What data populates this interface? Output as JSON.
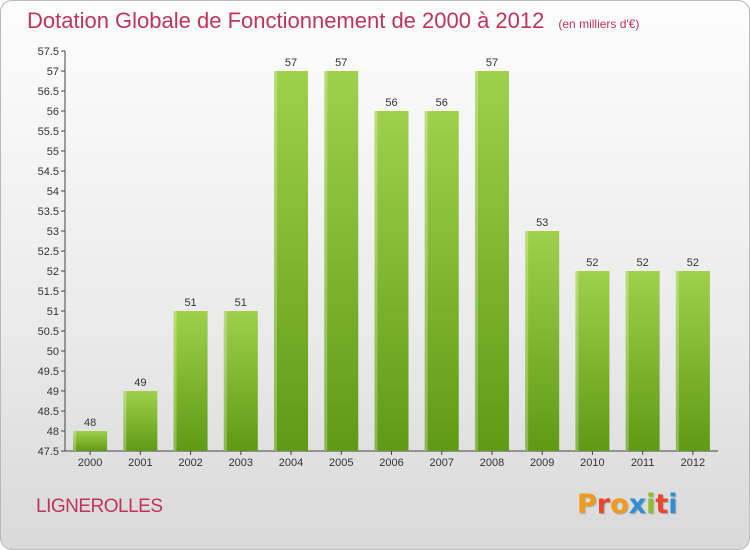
{
  "header": {
    "title": "Dotation Globale de Fonctionnement de 2000 à 2012",
    "subtitle": "(en milliers d'€)"
  },
  "footer": {
    "commune": "LIGNEROLLES",
    "logo_letters": [
      "P",
      "r",
      "o",
      "x",
      "i",
      "t",
      "i"
    ],
    "logo_colors": [
      "#f39a1b",
      "#e8452c",
      "#f39a1b",
      "#2f8fd6",
      "#8bbf2a",
      "#e8452c",
      "#2f8fd6"
    ]
  },
  "colors": {
    "bar_top": "#9fd14b",
    "bar_bottom": "#5f9a14",
    "title": "#c0345a"
  },
  "chart_data": {
    "type": "bar",
    "categories": [
      "2000",
      "2001",
      "2002",
      "2003",
      "2004",
      "2005",
      "2006",
      "2007",
      "2008",
      "2009",
      "2010",
      "2011",
      "2012"
    ],
    "values": [
      48,
      49,
      51,
      51,
      57,
      57,
      56,
      56,
      57,
      53,
      52,
      52,
      52
    ],
    "data_labels": [
      "48",
      "49",
      "51",
      "51",
      "57",
      "57",
      "56",
      "56",
      "57",
      "53",
      "52",
      "52",
      "52"
    ],
    "ylim": [
      47.5,
      57.5
    ],
    "yticks": [
      "47.5",
      "48",
      "48.5",
      "49",
      "49.5",
      "50",
      "50.5",
      "51",
      "51.5",
      "52",
      "52.5",
      "53",
      "53.5",
      "54",
      "54.5",
      "55",
      "55.5",
      "56",
      "56.5",
      "57",
      "57.5"
    ],
    "grid": false
  }
}
